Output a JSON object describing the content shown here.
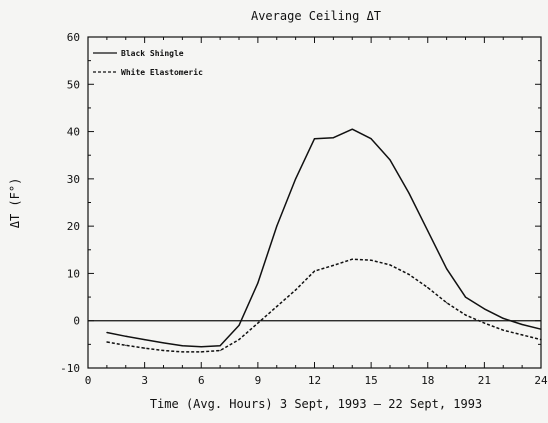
{
  "chart_data": {
    "type": "line",
    "title": "Average Ceiling ΔT",
    "xlabel": "Time (Avg. Hours) 3 Sept, 1993 – 22 Sept, 1993",
    "ylabel": "ΔT (F°)",
    "xlim": [
      0,
      24
    ],
    "ylim": [
      -10,
      60
    ],
    "x_ticks": [
      0,
      3,
      6,
      9,
      12,
      15,
      18,
      21,
      24
    ],
    "y_ticks": [
      -10,
      0,
      10,
      20,
      30,
      40,
      50,
      60
    ],
    "zero_line": true,
    "grid": false,
    "legend_position": "top-left",
    "series": [
      {
        "name": "Black Shingle",
        "style": "solid",
        "color": "#111111",
        "x": [
          1,
          2,
          3,
          4,
          5,
          6,
          7,
          8,
          9,
          10,
          11,
          12,
          13,
          14,
          15,
          16,
          17,
          18,
          19,
          20,
          21,
          22,
          23,
          24
        ],
        "y": [
          -2.5,
          -3.3,
          -4,
          -4.7,
          -5.3,
          -5.5,
          -5.3,
          -1,
          8,
          20,
          30,
          38.5,
          38.7,
          40.5,
          38.5,
          34,
          27,
          19,
          11,
          5,
          2.5,
          0.5,
          -0.8,
          -1.8
        ]
      },
      {
        "name": "White Elastomeric",
        "style": "dashed",
        "color": "#111111",
        "x": [
          1,
          2,
          3,
          4,
          5,
          6,
          7,
          8,
          9,
          10,
          11,
          12,
          13,
          14,
          15,
          16,
          17,
          18,
          19,
          20,
          21,
          22,
          23,
          24
        ],
        "y": [
          -4.5,
          -5.2,
          -5.8,
          -6.3,
          -6.6,
          -6.6,
          -6.3,
          -4,
          -0.5,
          3,
          6.5,
          10.5,
          11.7,
          13,
          12.8,
          11.8,
          9.8,
          7,
          3.8,
          1.2,
          -0.5,
          -2,
          -3,
          -4
        ]
      }
    ]
  }
}
